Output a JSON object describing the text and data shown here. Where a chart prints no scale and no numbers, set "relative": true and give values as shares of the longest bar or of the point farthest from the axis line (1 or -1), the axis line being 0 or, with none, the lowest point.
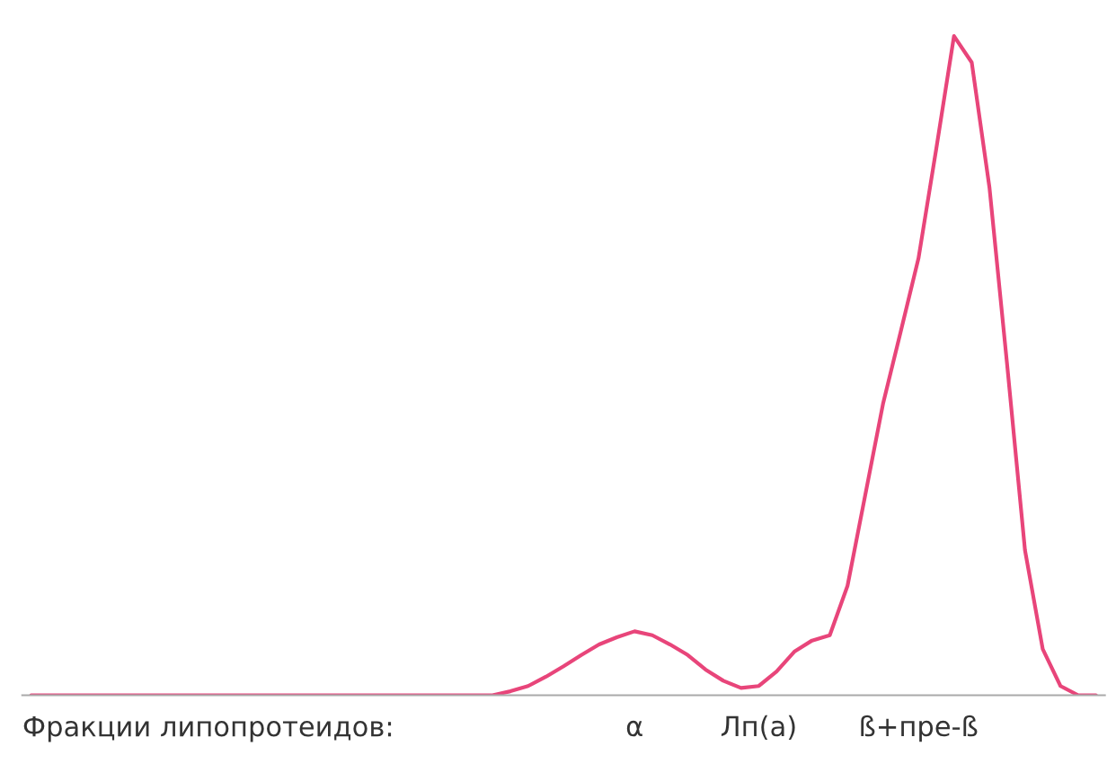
{
  "chart_data": {
    "type": "line",
    "relative": true,
    "grid": false,
    "legend": false,
    "marker": "none",
    "line_style": "solid",
    "xlabel": "Фракции липопротеидов:",
    "categories": [
      null,
      null,
      null,
      null,
      null,
      null,
      null,
      null,
      null,
      null,
      null,
      null,
      null,
      null,
      null,
      null,
      null,
      null,
      null,
      null,
      null,
      null,
      null,
      null,
      null,
      null,
      null,
      null,
      null,
      null,
      null,
      null,
      null,
      null,
      "α",
      null,
      null,
      null,
      null,
      null,
      null,
      "Лп(а)",
      null,
      null,
      null,
      null,
      null,
      null,
      null,
      null,
      "ß+пре-ß",
      null,
      null,
      null,
      null,
      null,
      null,
      null,
      null,
      null,
      null
    ],
    "series": [
      {
        "color": "#e8457a",
        "values": [
          0,
          0,
          0,
          0,
          0,
          0,
          0,
          0,
          0,
          0,
          0,
          0,
          0,
          0,
          0,
          0,
          0,
          0,
          0,
          0,
          0,
          0,
          0,
          0,
          0,
          0,
          0,
          0.006,
          0.014,
          0.028,
          0.044,
          0.061,
          0.077,
          0.088,
          0.097,
          0.091,
          0.077,
          0.061,
          0.039,
          0.022,
          0.011,
          0.014,
          0.036,
          0.066,
          0.083,
          0.091,
          0.166,
          0.304,
          0.442,
          0.552,
          0.663,
          0.829,
          1.0,
          0.96,
          0.77,
          0.5,
          0.22,
          0.07,
          0.014,
          0,
          0
        ]
      }
    ]
  }
}
